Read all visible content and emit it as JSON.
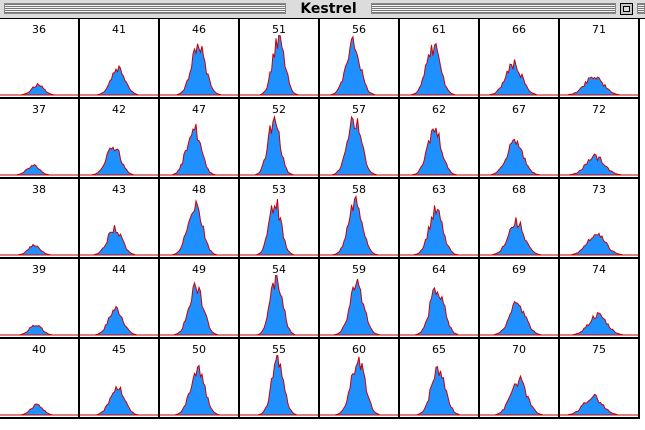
{
  "window": {
    "title": "Kestrel"
  },
  "colors": {
    "histogram_fill": "#1e90ff",
    "histogram_outline": "#cc0000",
    "grid_line": "#000000"
  },
  "grid": {
    "rows": [
      [
        "36",
        "41",
        "46",
        "51",
        "56",
        "61",
        "66",
        "71"
      ],
      [
        "37",
        "42",
        "47",
        "52",
        "57",
        "62",
        "67",
        "72"
      ],
      [
        "38",
        "43",
        "48",
        "53",
        "58",
        "63",
        "68",
        "73"
      ],
      [
        "39",
        "44",
        "49",
        "54",
        "59",
        "64",
        "69",
        "74"
      ],
      [
        "40",
        "45",
        "50",
        "55",
        "60",
        "65",
        "70",
        "75"
      ]
    ]
  }
}
